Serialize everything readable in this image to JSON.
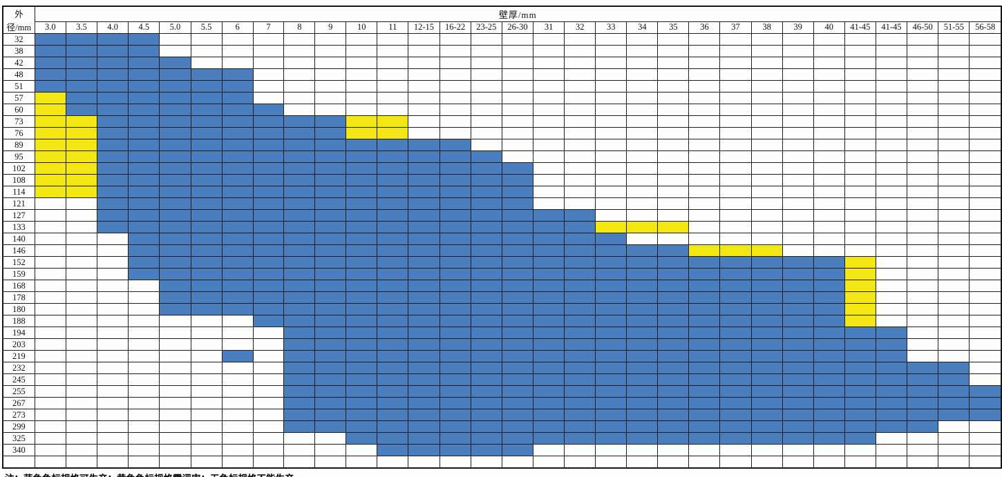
{
  "note": "注：蓝色色标规格可生产；黄色色标规格需评审；无色标规格不能生产。",
  "legend": {
    "blue_means": "可生产",
    "yellow_means": "需评审",
    "no_color_means": "不能生产"
  },
  "colors": {
    "blue": "#4a7ebc",
    "yellow": "#f2e713",
    "grid": "#1c1c1c"
  },
  "chart_data": {
    "type": "heatmap",
    "title": "壁厚/mm",
    "row_header": "外径/mm",
    "columns": [
      "3.0",
      "3.5",
      "4.0",
      "4.5",
      "5.0",
      "5.5",
      "6",
      "7",
      "8",
      "9",
      "10",
      "11",
      "12-15",
      "16-22",
      "23-25",
      "26-30",
      "31",
      "32",
      "33",
      "34",
      "35",
      "36",
      "37",
      "38",
      "39",
      "40",
      "41-45",
      "41-45",
      "46-50",
      "51-55",
      "56-58"
    ],
    "rows": [
      {
        "label": "32",
        "blue": [
          [
            1,
            4
          ]
        ],
        "yellow": []
      },
      {
        "label": "38",
        "blue": [
          [
            1,
            4
          ]
        ],
        "yellow": []
      },
      {
        "label": "42",
        "blue": [
          [
            1,
            5
          ]
        ],
        "yellow": []
      },
      {
        "label": "48",
        "blue": [
          [
            1,
            7
          ]
        ],
        "yellow": []
      },
      {
        "label": "51",
        "blue": [
          [
            1,
            7
          ]
        ],
        "yellow": []
      },
      {
        "label": "57",
        "blue": [
          [
            2,
            7
          ]
        ],
        "yellow": [
          [
            1,
            1
          ]
        ]
      },
      {
        "label": "60",
        "blue": [
          [
            2,
            8
          ]
        ],
        "yellow": [
          [
            1,
            1
          ]
        ]
      },
      {
        "label": "73",
        "blue": [
          [
            3,
            10
          ]
        ],
        "yellow": [
          [
            1,
            2
          ],
          [
            11,
            12
          ]
        ]
      },
      {
        "label": "76",
        "blue": [
          [
            3,
            10
          ]
        ],
        "yellow": [
          [
            1,
            2
          ],
          [
            11,
            12
          ]
        ]
      },
      {
        "label": "89",
        "blue": [
          [
            3,
            14
          ]
        ],
        "yellow": [
          [
            1,
            2
          ]
        ]
      },
      {
        "label": "95",
        "blue": [
          [
            3,
            15
          ]
        ],
        "yellow": [
          [
            1,
            2
          ]
        ]
      },
      {
        "label": "102",
        "blue": [
          [
            3,
            16
          ]
        ],
        "yellow": [
          [
            1,
            2
          ]
        ]
      },
      {
        "label": "108",
        "blue": [
          [
            3,
            16
          ]
        ],
        "yellow": [
          [
            1,
            2
          ]
        ]
      },
      {
        "label": "114",
        "blue": [
          [
            3,
            16
          ]
        ],
        "yellow": [
          [
            1,
            2
          ]
        ]
      },
      {
        "label": "121",
        "blue": [
          [
            3,
            16
          ]
        ],
        "yellow": []
      },
      {
        "label": "127",
        "blue": [
          [
            3,
            18
          ]
        ],
        "yellow": []
      },
      {
        "label": "133",
        "blue": [
          [
            3,
            18
          ]
        ],
        "yellow": [
          [
            19,
            21
          ]
        ]
      },
      {
        "label": "140",
        "blue": [
          [
            4,
            19
          ]
        ],
        "yellow": []
      },
      {
        "label": "146",
        "blue": [
          [
            4,
            21
          ]
        ],
        "yellow": [
          [
            22,
            24
          ]
        ]
      },
      {
        "label": "152",
        "blue": [
          [
            4,
            26
          ]
        ],
        "yellow": [
          [
            27,
            27
          ]
        ]
      },
      {
        "label": "159",
        "blue": [
          [
            4,
            26
          ]
        ],
        "yellow": [
          [
            27,
            27
          ]
        ]
      },
      {
        "label": "168",
        "blue": [
          [
            5,
            26
          ]
        ],
        "yellow": [
          [
            27,
            27
          ]
        ]
      },
      {
        "label": "178",
        "blue": [
          [
            5,
            26
          ]
        ],
        "yellow": [
          [
            27,
            27
          ]
        ]
      },
      {
        "label": "180",
        "blue": [
          [
            5,
            26
          ]
        ],
        "yellow": [
          [
            27,
            27
          ]
        ]
      },
      {
        "label": "188",
        "blue": [
          [
            8,
            26
          ]
        ],
        "yellow": [
          [
            27,
            27
          ]
        ]
      },
      {
        "label": "194",
        "blue": [
          [
            9,
            28
          ]
        ],
        "yellow": []
      },
      {
        "label": "203",
        "blue": [
          [
            9,
            28
          ]
        ],
        "yellow": []
      },
      {
        "label": "219",
        "blue": [
          [
            7,
            7
          ],
          [
            9,
            28
          ]
        ],
        "yellow": []
      },
      {
        "label": "232",
        "blue": [
          [
            9,
            30
          ]
        ],
        "yellow": []
      },
      {
        "label": "245",
        "blue": [
          [
            9,
            30
          ]
        ],
        "yellow": []
      },
      {
        "label": "255",
        "blue": [
          [
            9,
            31
          ]
        ],
        "yellow": []
      },
      {
        "label": "267",
        "blue": [
          [
            9,
            31
          ]
        ],
        "yellow": []
      },
      {
        "label": "273",
        "blue": [
          [
            9,
            31
          ]
        ],
        "yellow": []
      },
      {
        "label": "299",
        "blue": [
          [
            9,
            29
          ]
        ],
        "yellow": []
      },
      {
        "label": "325",
        "blue": [
          [
            11,
            27
          ]
        ],
        "yellow": []
      },
      {
        "label": "340",
        "blue": [
          [
            12,
            16
          ]
        ],
        "yellow": []
      },
      {
        "label": "",
        "blue": [],
        "yellow": []
      }
    ]
  }
}
